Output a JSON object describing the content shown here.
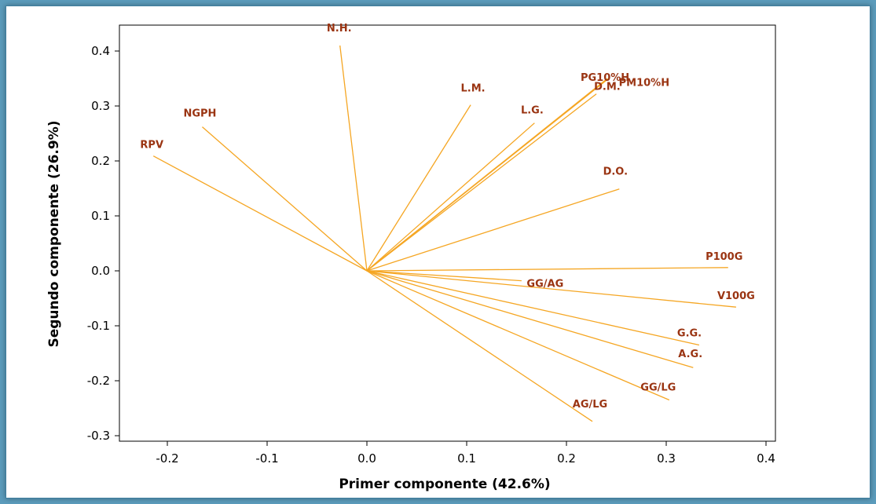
{
  "chart_data": {
    "type": "biplot",
    "xlabel": "Primer componente (42.6%)",
    "ylabel": "Segundo componente (26.9%)",
    "xlim": [
      -0.25,
      0.41
    ],
    "ylim": [
      -0.31,
      0.445
    ],
    "xticks": [
      -0.2,
      -0.1,
      0.0,
      0.1,
      0.2,
      0.3,
      0.4
    ],
    "yticks": [
      -0.3,
      -0.2,
      -0.1,
      0.0,
      0.1,
      0.2,
      0.3,
      0.4
    ],
    "xtick_labels": [
      "-0.2",
      "-0.1",
      "0.0",
      "0.1",
      "0.2",
      "0.3",
      "0.4"
    ],
    "ytick_labels": [
      "-0.3",
      "-0.2",
      "-0.1",
      "0.0",
      "0.1",
      "0.2",
      "0.3",
      "0.4"
    ],
    "vector_color": "#f5a623",
    "label_color": "#9a3412",
    "vectors": [
      {
        "name": "N.H.",
        "x": -0.027,
        "y": 0.41
      },
      {
        "name": "NGPH",
        "x": -0.165,
        "y": 0.262
      },
      {
        "name": "RPV",
        "x": -0.214,
        "y": 0.209
      },
      {
        "name": "L.M.",
        "x": 0.104,
        "y": 0.302
      },
      {
        "name": "L.G.",
        "x": 0.168,
        "y": 0.269
      },
      {
        "name": "PG10%H",
        "x": 0.241,
        "y": 0.35
      },
      {
        "name": "PM10%H",
        "x": 0.243,
        "y": 0.351
      },
      {
        "name": "D.M.",
        "x": 0.23,
        "y": 0.322
      },
      {
        "name": "D.O.",
        "x": 0.253,
        "y": 0.149
      },
      {
        "name": "P100G",
        "x": 0.362,
        "y": 0.006
      },
      {
        "name": "GG/AG",
        "x": 0.155,
        "y": -0.018
      },
      {
        "name": "V100G",
        "x": 0.37,
        "y": -0.066
      },
      {
        "name": "G.G.",
        "x": 0.333,
        "y": -0.135
      },
      {
        "name": "A.G.",
        "x": 0.327,
        "y": -0.176
      },
      {
        "name": "GG/LG",
        "x": 0.303,
        "y": -0.235
      },
      {
        "name": "AG/LG",
        "x": 0.226,
        "y": -0.274
      }
    ]
  }
}
